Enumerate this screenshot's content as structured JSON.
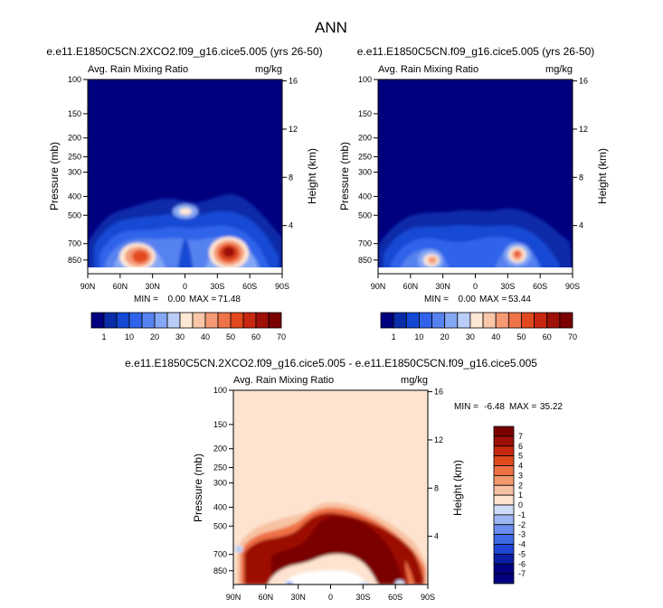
{
  "figure_title": "ANN",
  "panels": [
    {
      "title": "e.e11.E1850C5CN.2XCO2.f09_g16.cice5.005 (yrs 26-50)",
      "left_title": "Avg. Rain Mixing Ratio",
      "units": "mg/kg",
      "min_label": "MIN =",
      "min_value": "0.00",
      "max_label": "MAX =",
      "max_value": "71.48"
    },
    {
      "title": "e.e11.E1850C5CN.f09_g16.cice5.005 (yrs 26-50)",
      "left_title": "Avg. Rain Mixing Ratio",
      "units": "mg/kg",
      "min_label": "MIN =",
      "min_value": "0.00",
      "max_label": "MAX =",
      "max_value": "53.44"
    },
    {
      "title": "e.e11.E1850C5CN.2XCO2.f09_g16.cice5.005 - e.e11.E1850C5CN.f09_g16.cice5.005",
      "left_title": "Avg. Rain Mixing Ratio",
      "units": "mg/kg",
      "min_label": "MIN =",
      "min_value": "-6.48",
      "max_label": "MAX =",
      "max_value": "35.22"
    }
  ],
  "colors": {
    "abs_scale": [
      "#00007f",
      "#0a2ca8",
      "#1448d4",
      "#2f63ea",
      "#5682f0",
      "#85a8f4",
      "#b9cdf8",
      "#fde7d5",
      "#f9c7a8",
      "#f59a75",
      "#ef7248",
      "#e2481d",
      "#c7260f",
      "#a01008",
      "#7a0000"
    ],
    "diff_scale": [
      "#000080",
      "#0a1fa5",
      "#1f46d6",
      "#3f6ae8",
      "#6a8eef",
      "#9db6f4",
      "#cfddf8",
      "#fde3d0",
      "#f8c2a2",
      "#f3996e",
      "#ee7045",
      "#e04a1e",
      "#c52a0e",
      "#9c1006",
      "#7a0000"
    ]
  },
  "chart_data": [
    {
      "type": "heatmap",
      "title": "e.e11.E1850C5CN.2XCO2.f09_g16.cice5.005 (yrs 26-50)",
      "variable": "Avg. Rain Mixing Ratio",
      "units": "mg/kg",
      "xlabel": "",
      "ylabel": "Pressure (mb)",
      "y2label": "Height (km)",
      "x_ticks": [
        "90N",
        "60N",
        "30N",
        "0",
        "30S",
        "60S",
        "90S"
      ],
      "y_ticks": [
        100,
        150,
        200,
        250,
        300,
        400,
        500,
        700,
        850
      ],
      "y2_ticks": [
        4,
        8,
        12,
        16
      ],
      "ylim": [
        1000,
        100
      ],
      "colorbar_labels": [
        "1",
        "10",
        "20",
        "30",
        "40",
        "50",
        "60",
        "70"
      ],
      "min": 0.0,
      "max": 71.48
    },
    {
      "type": "heatmap",
      "title": "e.e11.E1850C5CN.f09_g16.cice5.005 (yrs 26-50)",
      "variable": "Avg. Rain Mixing Ratio",
      "units": "mg/kg",
      "xlabel": "",
      "ylabel": "Pressure (mb)",
      "y2label": "Height (km)",
      "x_ticks": [
        "90N",
        "60N",
        "30N",
        "0",
        "30S",
        "60S",
        "90S"
      ],
      "y_ticks": [
        100,
        150,
        200,
        250,
        300,
        400,
        500,
        700,
        850
      ],
      "y2_ticks": [
        4,
        8,
        12,
        16
      ],
      "ylim": [
        1000,
        100
      ],
      "colorbar_labels": [
        "1",
        "10",
        "20",
        "30",
        "40",
        "50",
        "60",
        "70"
      ],
      "min": 0.0,
      "max": 53.44
    },
    {
      "type": "heatmap",
      "title": "e.e11.E1850C5CN.2XCO2.f09_g16.cice5.005 - e.e11.E1850C5CN.f09_g16.cice5.005",
      "variable": "Avg. Rain Mixing Ratio",
      "units": "mg/kg",
      "xlabel": "",
      "ylabel": "Pressure (mb)",
      "y2label": "Height (km)",
      "x_ticks": [
        "90N",
        "60N",
        "30N",
        "0",
        "30S",
        "60S",
        "90S"
      ],
      "y_ticks": [
        100,
        150,
        200,
        250,
        300,
        400,
        500,
        700,
        850
      ],
      "y2_ticks": [
        4,
        8,
        12,
        16
      ],
      "ylim": [
        1000,
        100
      ],
      "colorbar_labels": [
        "7",
        "6",
        "5",
        "4",
        "3",
        "2",
        "1",
        "0",
        "-1",
        "-2",
        "-3",
        "-4",
        "-5",
        "-6",
        "-7"
      ],
      "min": -6.48,
      "max": 35.22
    }
  ]
}
